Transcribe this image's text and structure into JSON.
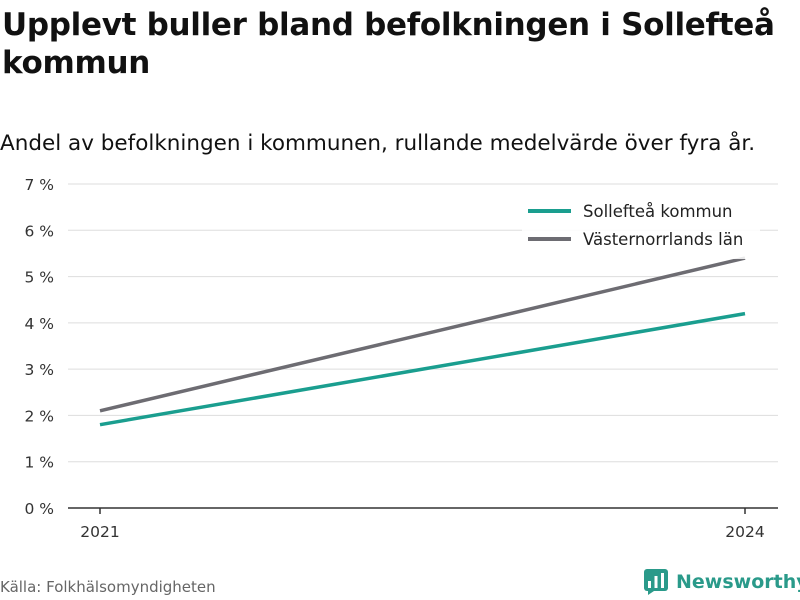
{
  "header": {
    "title": "Upplevt buller bland befolkningen i Sollefteå kommun",
    "subtitle": "Andel av befolkningen i kommunen, rullande medelvärde över fyra år."
  },
  "footer": {
    "source": "Källa: Folkhälsomyndigheten",
    "brand": "Newsworthy"
  },
  "colors": {
    "sollefteå": "#1a9e8f",
    "vasternorrland": "#6d6c72",
    "grid": "#dddddd",
    "axis": "#333333",
    "brand": "#2a9a8a"
  },
  "chart_data": {
    "type": "line",
    "x": [
      2021,
      2024
    ],
    "x_tick_labels": [
      "2021",
      "2024"
    ],
    "y_tick_labels": [
      "0 %",
      "1 %",
      "2 %",
      "3 %",
      "4 %",
      "5 %",
      "6 %",
      "7 %"
    ],
    "ylim": [
      0,
      7
    ],
    "grid": true,
    "legend_position": "top-right",
    "series": [
      {
        "name": "Sollefteå kommun",
        "values": [
          1.8,
          4.2
        ],
        "color": "#1a9e8f"
      },
      {
        "name": "Västernorrlands län",
        "values": [
          2.1,
          5.4
        ],
        "color": "#6d6c72"
      }
    ]
  }
}
